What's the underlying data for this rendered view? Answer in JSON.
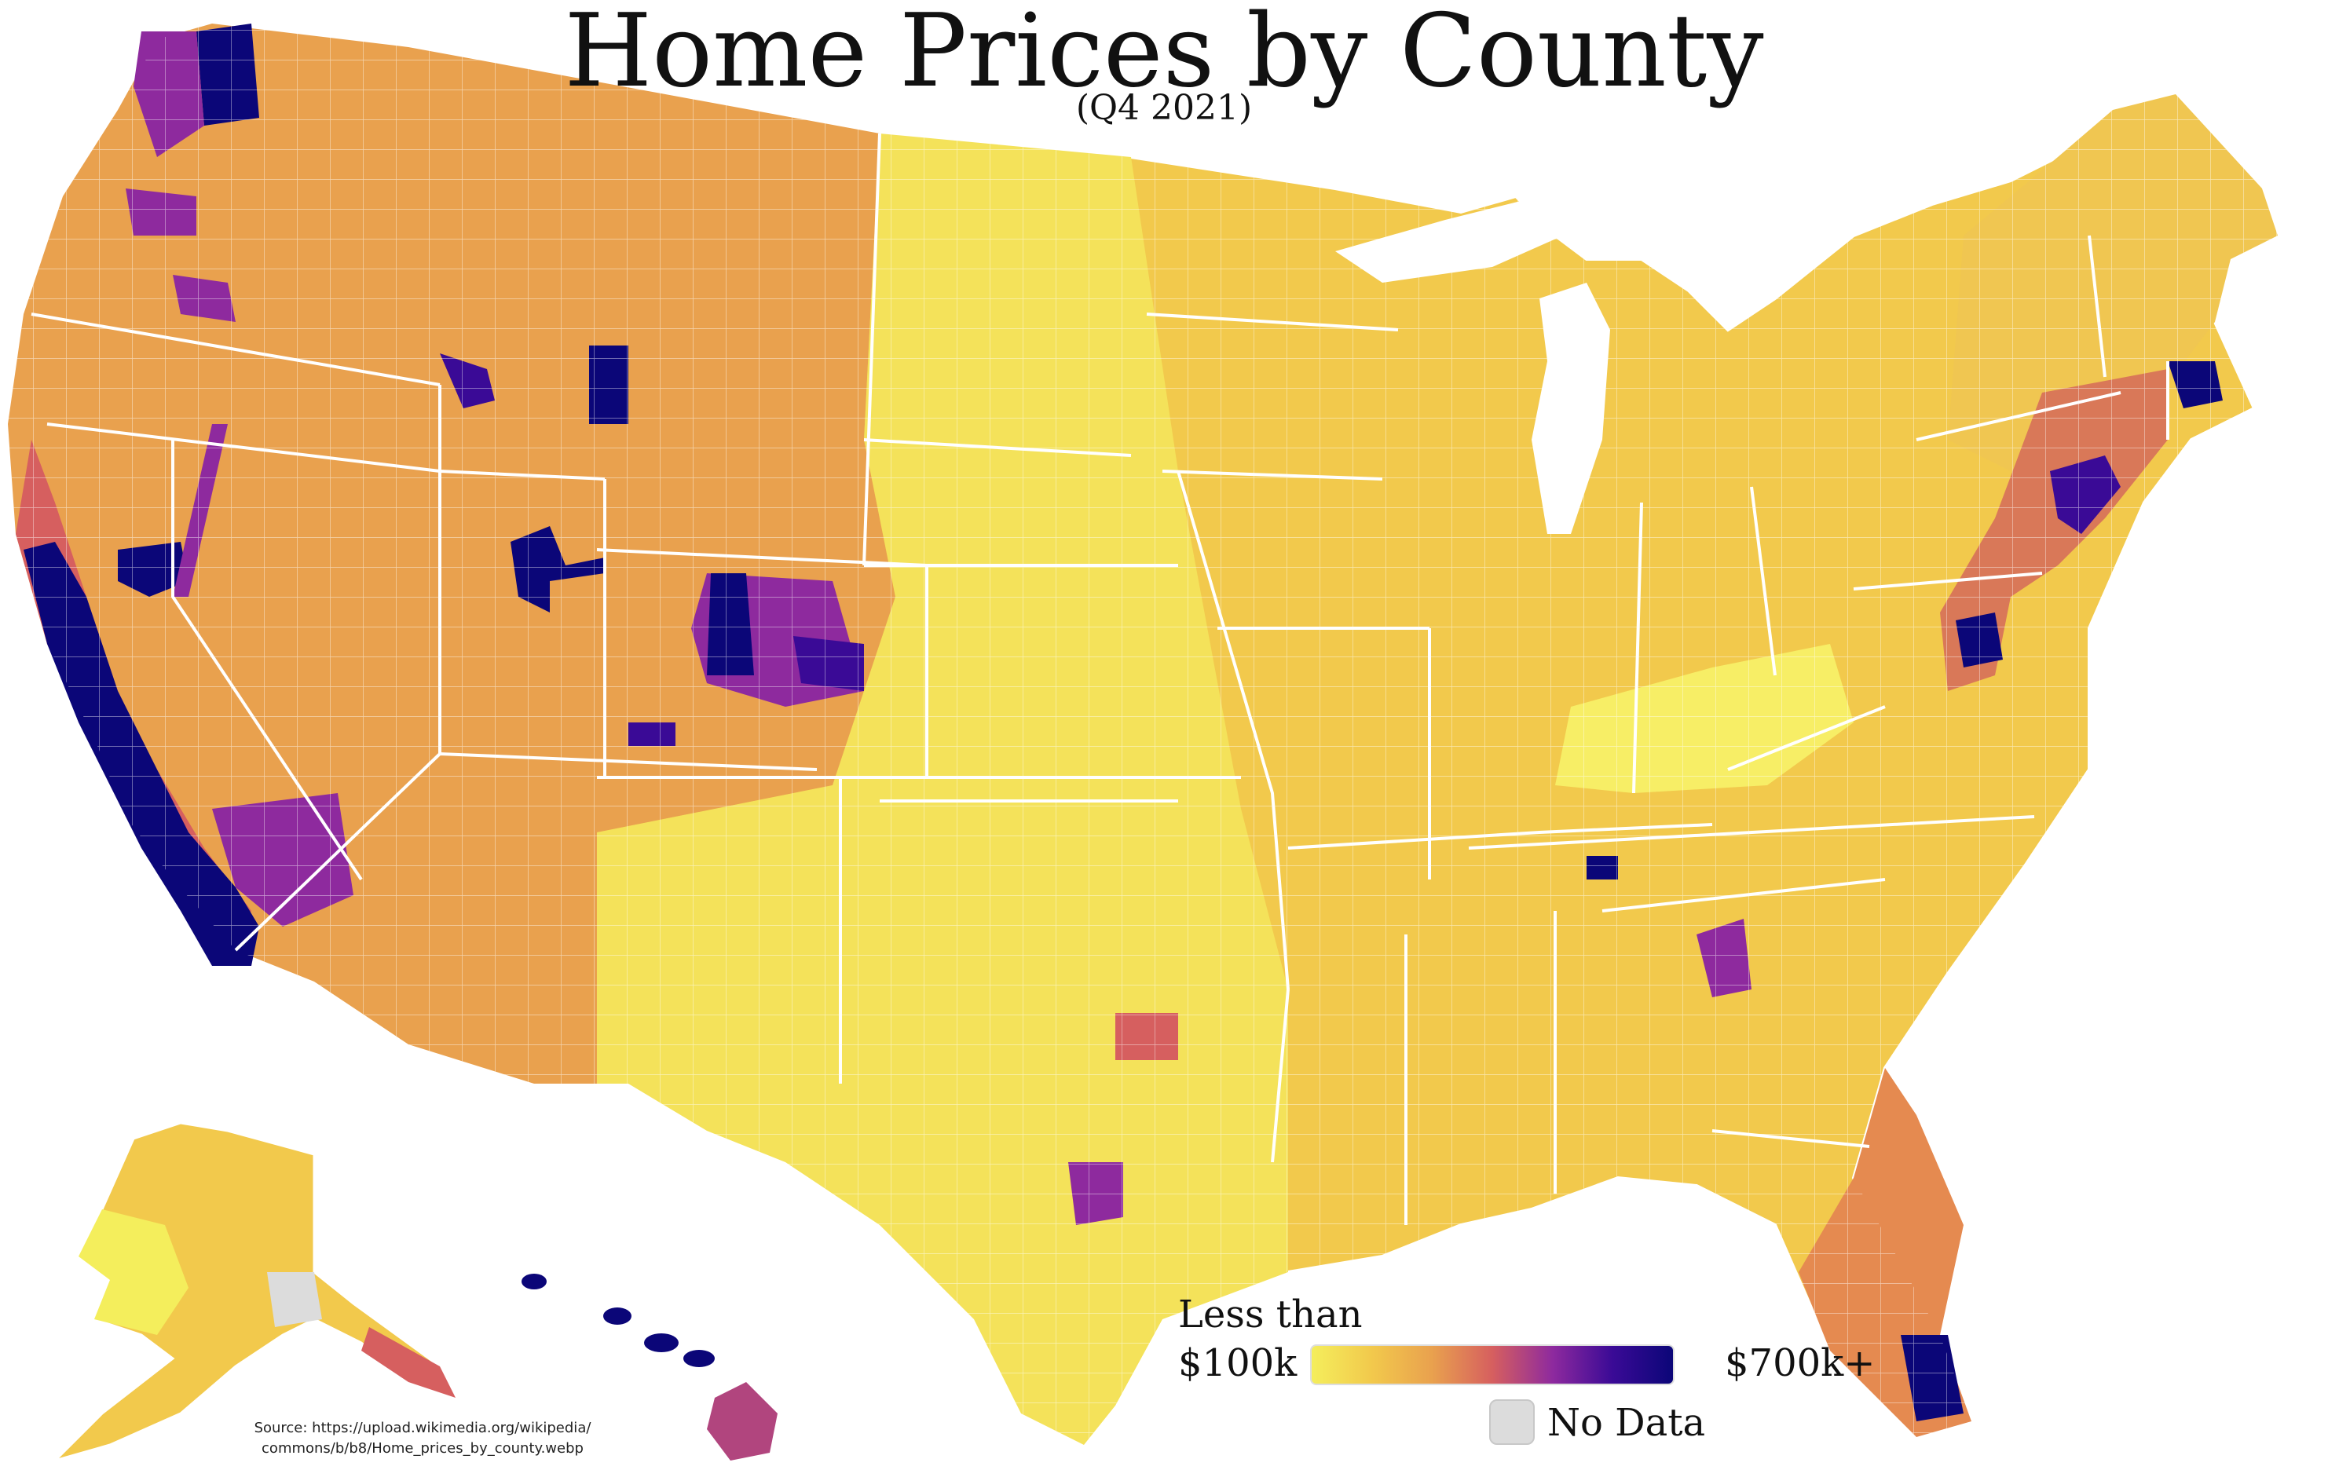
{
  "title": "Home Prices by County",
  "subtitle": "(Q4 2021)",
  "legend": {
    "min_label_line1": "Less than",
    "min_label_line2": "$100k",
    "max_label": "$700k+",
    "no_data_label": "No Data",
    "gradient_colors": [
      "#f4ee5c",
      "#f2c94c",
      "#e9a14e",
      "#d65f5f",
      "#8e2a9e",
      "#3a0a96",
      "#0b0678"
    ],
    "no_data_color": "#dcdcdc"
  },
  "source": {
    "line1": "Source: https://upload.wikimedia.org/wikipedia/",
    "line2": "commons/b/b8/Home_prices_by_county.webp"
  },
  "colors": {
    "border": "#ffffff",
    "low": "#f4ee5c",
    "mid_low": "#f2c94c",
    "mid": "#e9a14e",
    "mid_high": "#d65f5f",
    "high": "#8e2a9e",
    "top": "#0b0678"
  }
}
